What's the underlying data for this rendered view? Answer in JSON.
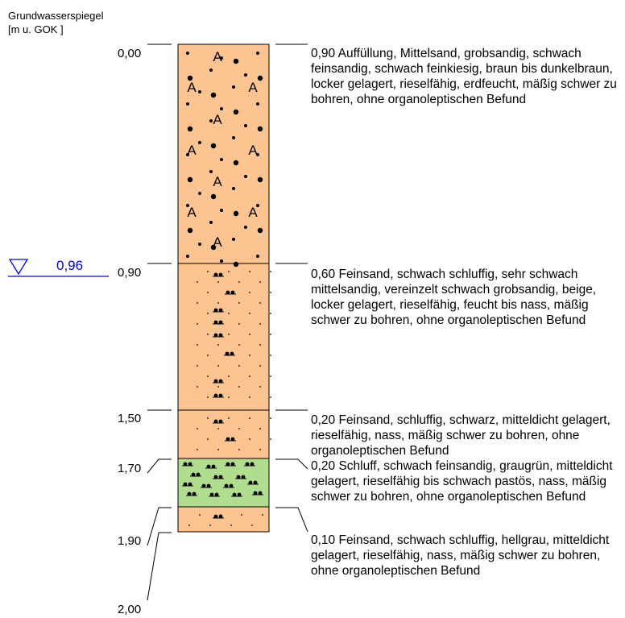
{
  "header": {
    "line1": "Grundwasserspiegel",
    "line2": "[m u. GOK ]"
  },
  "groundwater": {
    "value": "0,96",
    "color": "#0000ff"
  },
  "depths": [
    {
      "label": "0,00"
    },
    {
      "label": "0,90"
    },
    {
      "label": "1,50"
    },
    {
      "label": "1,70"
    },
    {
      "label": "1,90"
    },
    {
      "label": "2,00"
    }
  ],
  "layers": [
    {
      "text": "0,90 Auffüllung, Mittelsand, grobsandig, schwach feinsandig, schwach feinkiesig, braun bis dunkelbraun, locker gelagert, rieselfähig, erdfeucht, mäßig schwer zu bohren, ohne organoleptischen Befund",
      "color": "#fbc490"
    },
    {
      "text": "0,60 Feinsand, schwach schluffig, sehr schwach mittelsandig, vereinzelt schwach grobsandig, beige, locker gelagert, rieselfähig, feucht bis nass, mäßig schwer zu bohren, ohne organoleptischen Befund",
      "color": "#fbc490"
    },
    {
      "text": "0,20 Feinsand, schluffig, schwarz, mitteldicht gelagert, rieselfähig, nass, mäßig schwer zu bohren, ohne organoleptischen Befund",
      "color": "#fbc490"
    },
    {
      "text": "0,20 Schluff, schwach feinsandig, graugrün, mitteldicht gelagert, rieselfähig bis schwach pastös, nass, mäßig schwer zu bohren, ohne organoleptischen Befund",
      "color": "#b0de8e"
    },
    {
      "text": "0,10 Feinsand, schwach schluffig, hellgrau, mitteldicht gelagert, rieselfähig, nass, mäßig schwer zu bohren, ohne organoleptischen Befund",
      "color": "#fbc490"
    }
  ]
}
